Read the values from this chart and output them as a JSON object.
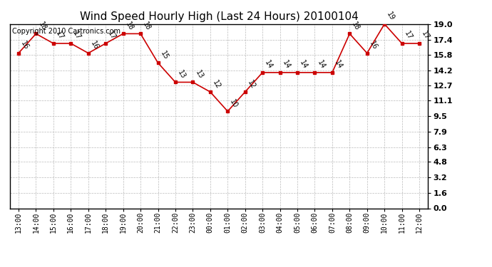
{
  "title": "Wind Speed Hourly High (Last 24 Hours) 20100104",
  "copyright": "Copyright 2010 Cartronics.com",
  "x_labels": [
    "13:00",
    "14:00",
    "15:00",
    "16:00",
    "17:00",
    "18:00",
    "19:00",
    "20:00",
    "21:00",
    "22:00",
    "23:00",
    "00:00",
    "01:00",
    "02:00",
    "03:00",
    "04:00",
    "05:00",
    "06:00",
    "07:00",
    "08:00",
    "09:00",
    "10:00",
    "11:00",
    "12:00"
  ],
  "wind_data": [
    16,
    18,
    17,
    17,
    16,
    17,
    18,
    18,
    15,
    13,
    13,
    12,
    10,
    12,
    14,
    14,
    14,
    14,
    14,
    18,
    16,
    19,
    17,
    17
  ],
  "yticks": [
    0.0,
    1.6,
    3.2,
    4.8,
    6.3,
    7.9,
    9.5,
    11.1,
    12.7,
    14.2,
    15.8,
    17.4,
    19.0
  ],
  "ytick_labels": [
    "0.0",
    "1.6",
    "3.2",
    "4.8",
    "6.3",
    "7.9",
    "9.5",
    "11.1",
    "12.7",
    "14.2",
    "15.8",
    "17.4",
    "19.0"
  ],
  "line_color": "#cc0000",
  "marker": "s",
  "marker_size": 3.5,
  "bg_color": "#ffffff",
  "grid_color": "#bbbbbb",
  "title_fontsize": 11,
  "tick_fontsize": 7,
  "ytick_fontsize": 8,
  "copyright_fontsize": 7,
  "label_fontsize": 7,
  "label_rotation": -60
}
